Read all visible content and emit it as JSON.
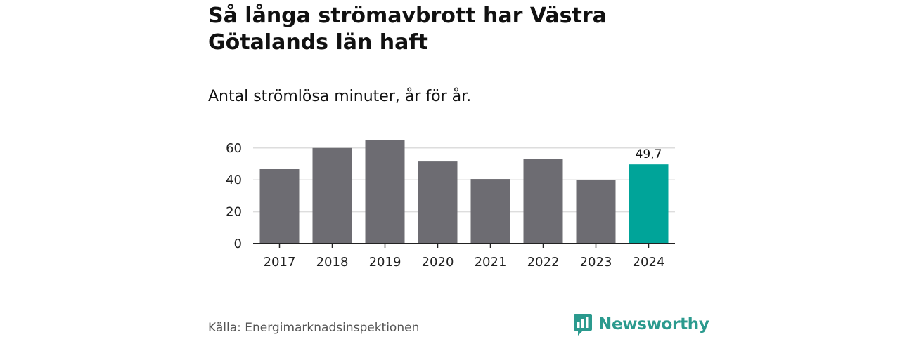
{
  "title": "Så långa strömavbrott har Västra Götalands län haft",
  "subtitle": "Antal strömlösa minuter, år för år.",
  "source": "Källa: Energimarknadsinspektionen",
  "brand": "Newsworthy",
  "colors": {
    "bar": "#6d6c72",
    "highlight": "#00a499",
    "grid": "#dddddd",
    "axis": "#222222",
    "brand": "#2b9a8e"
  },
  "chart_data": {
    "type": "bar",
    "categories": [
      "2017",
      "2018",
      "2019",
      "2020",
      "2021",
      "2022",
      "2023",
      "2024"
    ],
    "values": [
      47,
      60,
      65,
      51.5,
      40.5,
      53,
      40,
      49.7
    ],
    "highlight_index": 7,
    "data_labels": [
      {
        "index": 7,
        "text": "49,7"
      }
    ],
    "yticks": [
      0,
      20,
      40,
      60
    ],
    "ylim": [
      0,
      66
    ],
    "xlabel": "",
    "ylabel": "",
    "grid": true
  }
}
